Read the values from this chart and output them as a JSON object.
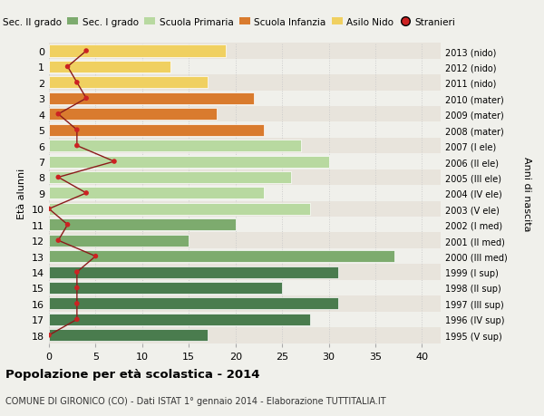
{
  "ages": [
    18,
    17,
    16,
    15,
    14,
    13,
    12,
    11,
    10,
    9,
    8,
    7,
    6,
    5,
    4,
    3,
    2,
    1,
    0
  ],
  "anni_nascita": [
    "1995 (V sup)",
    "1996 (IV sup)",
    "1997 (III sup)",
    "1998 (II sup)",
    "1999 (I sup)",
    "2000 (III med)",
    "2001 (II med)",
    "2002 (I med)",
    "2003 (V ele)",
    "2004 (IV ele)",
    "2005 (III ele)",
    "2006 (II ele)",
    "2007 (I ele)",
    "2008 (mater)",
    "2009 (mater)",
    "2010 (mater)",
    "2011 (nido)",
    "2012 (nido)",
    "2013 (nido)"
  ],
  "bar_values": [
    17,
    28,
    31,
    25,
    31,
    37,
    15,
    20,
    28,
    23,
    26,
    30,
    27,
    23,
    18,
    22,
    17,
    13,
    19
  ],
  "bar_colors": [
    "#4a7c4e",
    "#4a7c4e",
    "#4a7c4e",
    "#4a7c4e",
    "#4a7c4e",
    "#7dab6e",
    "#7dab6e",
    "#7dab6e",
    "#b8d9a0",
    "#b8d9a0",
    "#b8d9a0",
    "#b8d9a0",
    "#b8d9a0",
    "#d97b2e",
    "#d97b2e",
    "#d97b2e",
    "#f0d060",
    "#f0d060",
    "#f0d060"
  ],
  "stranieri_values": [
    0,
    3,
    3,
    3,
    3,
    5,
    1,
    2,
    0,
    4,
    1,
    7,
    3,
    3,
    1,
    4,
    3,
    2,
    4
  ],
  "title_bold": "Popolazione per età scolastica - 2014",
  "title_sub": "COMUNE DI GIRONICO (CO) - Dati ISTAT 1° gennaio 2014 - Elaborazione TUTTITALIA.IT",
  "ylabel_left": "Età alunni",
  "ylabel_right": "Anni di nascita",
  "background_color": "#f0f0eb",
  "bar_bg_odd": "#e8e8e3",
  "grid_color": "#cccccc",
  "xlim": [
    0,
    42
  ],
  "legend_labels": [
    "Sec. II grado",
    "Sec. I grado",
    "Scuola Primaria",
    "Scuola Infanzia",
    "Asilo Nido",
    "Stranieri"
  ],
  "legend_colors": [
    "#4a7c4e",
    "#7dab6e",
    "#b8d9a0",
    "#d97b2e",
    "#f0d060",
    "#cc2222"
  ]
}
